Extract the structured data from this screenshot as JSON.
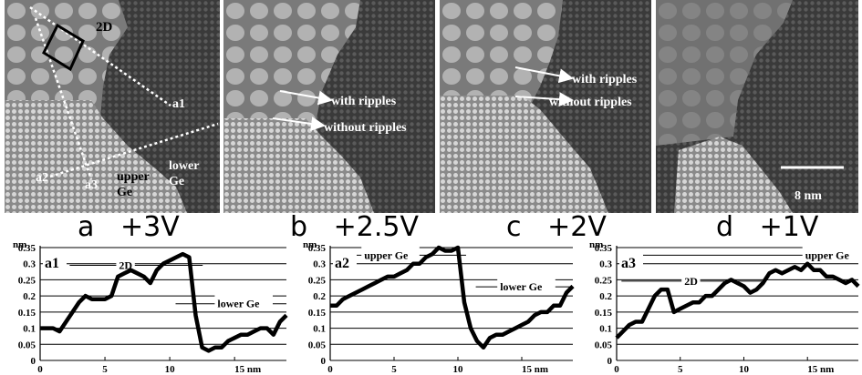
{
  "panels": [
    {
      "id": "a",
      "caption": "a   +3V",
      "labels": {
        "two_d": "2D",
        "a1": "a1",
        "a2": "a2",
        "a3": "a3",
        "upper": "upper\nGe",
        "lower": "lower\nGe"
      }
    },
    {
      "id": "b",
      "caption": "b   +2.5V",
      "labels": {
        "with_ripples": "with ripples",
        "without_ripples": "without ripples"
      }
    },
    {
      "id": "c",
      "caption": "c   +2V",
      "labels": {
        "with_ripples": "with ripples",
        "without_ripples": "without ripples"
      }
    },
    {
      "id": "d",
      "caption": "d   +1V",
      "labels": {
        "scale_bar": "8 nm"
      }
    }
  ],
  "chart_data": [
    {
      "type": "line",
      "title": "a1",
      "ylabel": "nm",
      "xlabel": "15 nm",
      "xlim": [
        0,
        19
      ],
      "ylim": [
        0,
        0.35
      ],
      "xticks": [
        "0",
        "5",
        "10",
        "15 nm"
      ],
      "yticks": [
        "0",
        "0.05",
        "0.1",
        "0.15",
        "0.2",
        "0.25",
        "0.3",
        "0.35"
      ],
      "annotations": [
        "2D",
        "lower Ge"
      ],
      "series": [
        {
          "x": [
            0,
            0.5,
            1,
            1.5,
            2,
            2.5,
            3,
            3.5,
            4,
            4.5,
            5,
            5.5,
            6,
            6.5,
            7,
            7.5,
            8,
            8.5,
            9,
            9.5,
            10,
            10.5,
            11,
            11.5,
            12,
            12.5,
            13,
            13.5,
            14,
            14.5,
            15,
            15.5,
            16,
            16.5,
            17,
            17.5,
            18,
            18.5,
            19
          ],
          "values": [
            0.1,
            0.1,
            0.1,
            0.09,
            0.12,
            0.15,
            0.18,
            0.2,
            0.19,
            0.19,
            0.19,
            0.2,
            0.26,
            0.27,
            0.28,
            0.27,
            0.26,
            0.24,
            0.28,
            0.3,
            0.31,
            0.32,
            0.33,
            0.32,
            0.14,
            0.04,
            0.03,
            0.04,
            0.04,
            0.06,
            0.07,
            0.08,
            0.08,
            0.09,
            0.1,
            0.1,
            0.08,
            0.12,
            0.14
          ]
        }
      ]
    },
    {
      "type": "line",
      "title": "a2",
      "ylabel": "nm",
      "xlabel": "15 nm",
      "xlim": [
        0,
        19
      ],
      "ylim": [
        0,
        0.35
      ],
      "xticks": [
        "0",
        "5",
        "10",
        "15 nm"
      ],
      "yticks": [
        "0",
        "0.05",
        "0.1",
        "0.15",
        "0.2",
        "0.25",
        "0.3",
        "0.35"
      ],
      "annotations": [
        "upper Ge",
        "lower Ge"
      ],
      "series": [
        {
          "x": [
            0,
            0.5,
            1,
            1.5,
            2,
            2.5,
            3,
            3.5,
            4,
            4.5,
            5,
            5.5,
            6,
            6.5,
            7,
            7.5,
            8,
            8.5,
            9,
            9.5,
            10,
            10.5,
            11,
            11.5,
            12,
            12.5,
            13,
            13.5,
            14,
            14.5,
            15,
            15.5,
            16,
            16.5,
            17,
            17.5,
            18,
            18.5,
            19
          ],
          "values": [
            0.17,
            0.17,
            0.19,
            0.2,
            0.21,
            0.22,
            0.23,
            0.24,
            0.25,
            0.26,
            0.26,
            0.27,
            0.28,
            0.3,
            0.3,
            0.32,
            0.33,
            0.35,
            0.34,
            0.34,
            0.35,
            0.18,
            0.1,
            0.06,
            0.04,
            0.07,
            0.08,
            0.08,
            0.09,
            0.1,
            0.11,
            0.12,
            0.14,
            0.15,
            0.15,
            0.17,
            0.17,
            0.21,
            0.23
          ]
        }
      ]
    },
    {
      "type": "line",
      "title": "a3",
      "ylabel": "nm",
      "xlabel": "15 nm",
      "xlim": [
        0,
        19
      ],
      "ylim": [
        0,
        0.35
      ],
      "xticks": [
        "0",
        "5",
        "10",
        "15 nm"
      ],
      "yticks": [
        "0",
        "0.05",
        "0.1",
        "0.15",
        "0.2",
        "0.25",
        "0.3",
        "0.35"
      ],
      "annotations": [
        "2D",
        "upper Ge"
      ],
      "series": [
        {
          "x": [
            0,
            0.5,
            1,
            1.5,
            2,
            2.5,
            3,
            3.5,
            4,
            4.5,
            5,
            5.5,
            6,
            6.5,
            7,
            7.5,
            8,
            8.5,
            9,
            9.5,
            10,
            10.5,
            11,
            11.5,
            12,
            12.5,
            13,
            13.5,
            14,
            14.5,
            15,
            15.5,
            16,
            16.5,
            17,
            17.5,
            18,
            18.5,
            19
          ],
          "values": [
            0.07,
            0.09,
            0.11,
            0.12,
            0.12,
            0.16,
            0.2,
            0.22,
            0.22,
            0.15,
            0.16,
            0.17,
            0.18,
            0.18,
            0.2,
            0.2,
            0.22,
            0.24,
            0.25,
            0.24,
            0.23,
            0.21,
            0.22,
            0.24,
            0.27,
            0.28,
            0.27,
            0.28,
            0.29,
            0.28,
            0.3,
            0.28,
            0.28,
            0.26,
            0.26,
            0.25,
            0.24,
            0.25,
            0.23
          ]
        }
      ]
    }
  ]
}
